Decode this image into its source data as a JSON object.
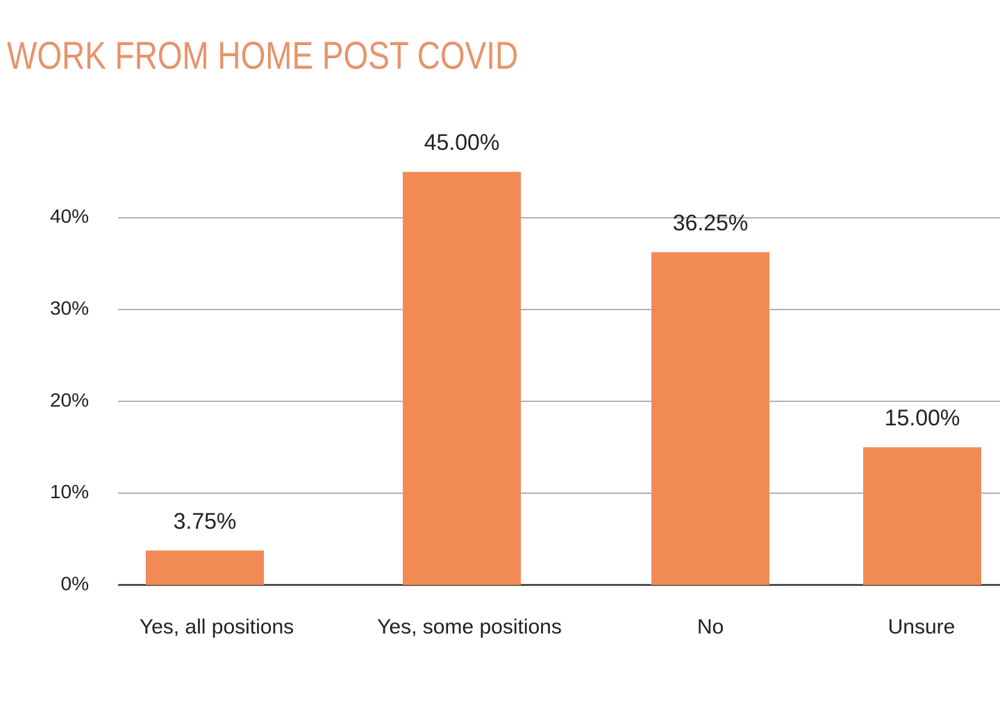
{
  "chart_data": {
    "type": "bar",
    "title": "WORK FROM HOME POST COVID",
    "categories": [
      "Yes, all positions",
      "Yes, some positions",
      "No",
      "Unsure"
    ],
    "values": [
      3.75,
      45,
      36.25,
      15
    ],
    "value_labels": [
      "3.75%",
      "45.00%",
      "36.25%",
      "15.00%"
    ],
    "color": "#f28a55",
    "ylim": [
      0,
      48
    ],
    "yticks": [
      {
        "value": 0,
        "label": "0%"
      },
      {
        "value": 10,
        "label": "10%"
      },
      {
        "value": 20,
        "label": "20%"
      },
      {
        "value": 30,
        "label": "30%"
      },
      {
        "value": 40,
        "label": "40%"
      }
    ],
    "grid": true
  }
}
